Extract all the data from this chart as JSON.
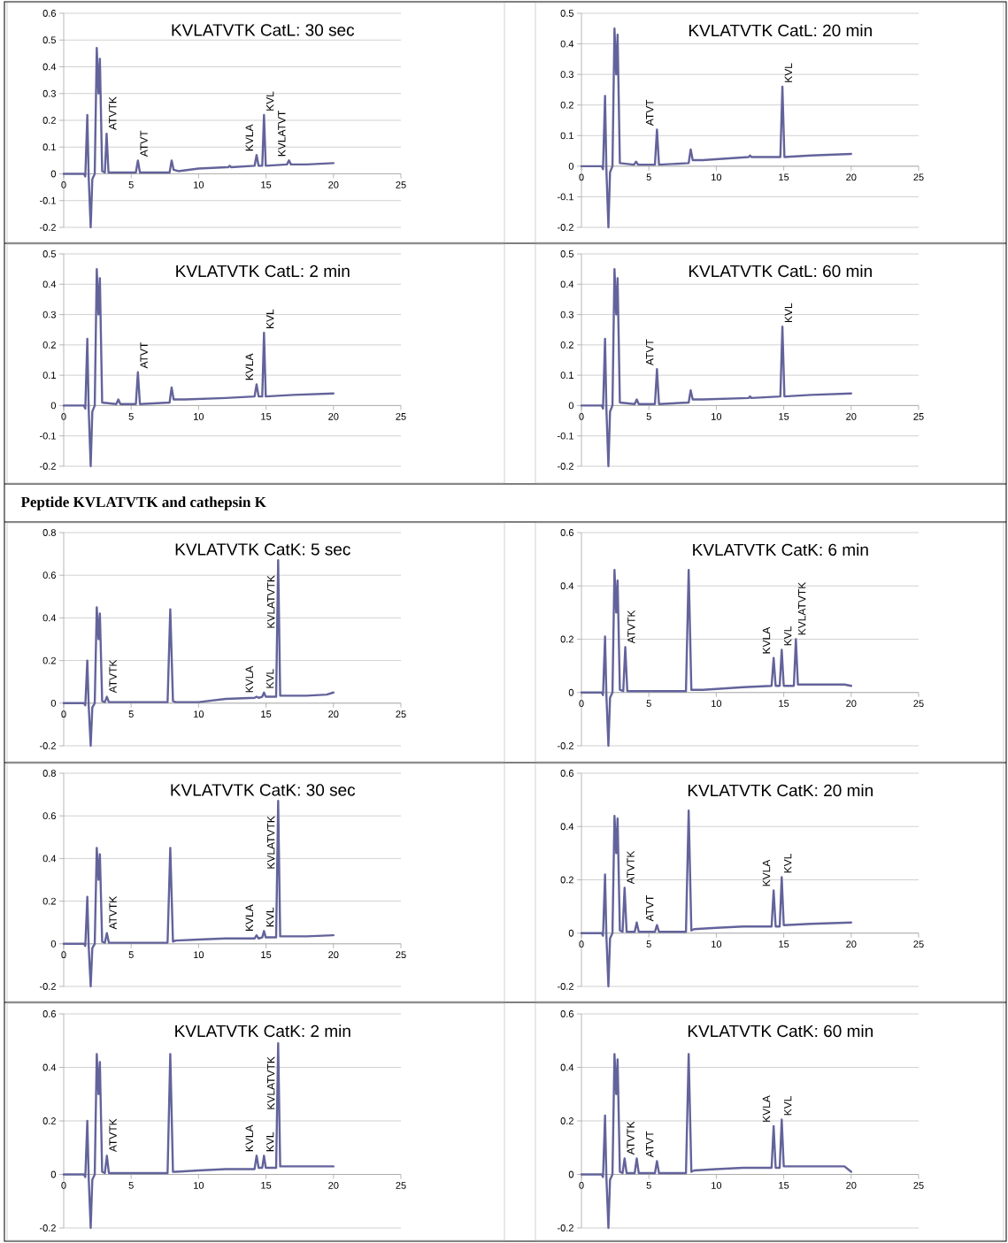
{
  "chart_data": [
    {
      "type": "line",
      "title": "KVLATVTK CatL: 30 sec",
      "color": "#63639b",
      "xlim": [
        0,
        25
      ],
      "ylim": [
        -0.2,
        0.6
      ],
      "xticks": [
        0,
        5,
        10,
        15,
        20,
        25
      ],
      "yticks": [
        -0.2,
        -0.1,
        0,
        0.1,
        0.2,
        0.3,
        0.4,
        0.5,
        0.6
      ],
      "grid": "y",
      "x": [
        0,
        1.5,
        1.6,
        1.75,
        1.85,
        2.0,
        2.12,
        2.3,
        2.45,
        2.58,
        2.68,
        2.85,
        3.05,
        3.18,
        3.32,
        5.35,
        5.5,
        5.65,
        7.85,
        8.0,
        8.15,
        8.5,
        10,
        12.2,
        12.3,
        12.4,
        14.15,
        14.3,
        14.45,
        14.72,
        14.85,
        14.98,
        16.55,
        16.7,
        16.85,
        18,
        20
      ],
      "values": [
        0,
        0,
        -0.01,
        0.22,
        -0.01,
        -0.2,
        -0.02,
        0,
        0.47,
        0.3,
        0.43,
        0.01,
        0.005,
        0.15,
        0.005,
        0.005,
        0.05,
        0.005,
        0.005,
        0.05,
        0.015,
        0.01,
        0.02,
        0.025,
        0.03,
        0.025,
        0.03,
        0.07,
        0.03,
        0.03,
        0.22,
        0.03,
        0.035,
        0.05,
        0.035,
        0.035,
        0.04
      ],
      "annotations": [
        {
          "text": "ATVTK",
          "x": 3.18,
          "y": 0.15
        },
        {
          "text": "ATVT",
          "x": 5.5,
          "y": 0.05
        },
        {
          "text": "KVLA",
          "x": 14.3,
          "y": 0.07
        },
        {
          "text": "KVL",
          "x": 14.85,
          "y": 0.22
        },
        {
          "text": "KVLATVT",
          "x": 16.7,
          "y": 0.05
        }
      ]
    },
    {
      "type": "line",
      "title": "KVLATVTK CatL: 20 min",
      "color": "#63639b",
      "xlim": [
        0,
        25
      ],
      "ylim": [
        -0.2,
        0.5
      ],
      "xticks": [
        0,
        5,
        10,
        15,
        20,
        25
      ],
      "yticks": [
        -0.2,
        -0.1,
        0,
        0.1,
        0.2,
        0.3,
        0.4,
        0.5
      ],
      "grid": "y",
      "x": [
        0,
        1.5,
        1.6,
        1.75,
        1.85,
        2.0,
        2.12,
        2.3,
        2.45,
        2.58,
        2.68,
        2.85,
        3.9,
        4.05,
        4.2,
        5.45,
        5.6,
        5.75,
        7.95,
        8.1,
        8.25,
        9,
        12.4,
        12.5,
        12.6,
        14.75,
        14.9,
        15.05,
        17,
        20
      ],
      "values": [
        0,
        0,
        -0.01,
        0.23,
        -0.01,
        -0.2,
        -0.02,
        0,
        0.45,
        0.3,
        0.43,
        0.01,
        0.005,
        0.015,
        0.005,
        0.005,
        0.12,
        0.005,
        0.01,
        0.055,
        0.02,
        0.02,
        0.03,
        0.035,
        0.03,
        0.03,
        0.26,
        0.03,
        0.035,
        0.04
      ],
      "annotations": [
        {
          "text": "ATVT",
          "x": 5.6,
          "y": 0.12
        },
        {
          "text": "KVL",
          "x": 14.9,
          "y": 0.26
        }
      ]
    },
    {
      "type": "line",
      "title": "KVLATVTK CatL: 2 min",
      "color": "#63639b",
      "xlim": [
        0,
        25
      ],
      "ylim": [
        -0.2,
        0.5
      ],
      "xticks": [
        0,
        5,
        10,
        15,
        20,
        25
      ],
      "yticks": [
        -0.2,
        -0.1,
        0,
        0.1,
        0.2,
        0.3,
        0.4,
        0.5
      ],
      "grid": "y",
      "x": [
        0,
        1.5,
        1.6,
        1.75,
        1.85,
        2.0,
        2.12,
        2.3,
        2.45,
        2.58,
        2.68,
        2.85,
        3.9,
        4.05,
        4.2,
        5.35,
        5.5,
        5.65,
        7.85,
        8.0,
        8.15,
        9,
        12,
        14.15,
        14.3,
        14.45,
        14.72,
        14.85,
        14.98,
        17,
        20
      ],
      "values": [
        0,
        0,
        -0.01,
        0.22,
        -0.01,
        -0.2,
        -0.02,
        0,
        0.45,
        0.3,
        0.42,
        0.01,
        0.005,
        0.02,
        0.005,
        0.005,
        0.11,
        0.005,
        0.01,
        0.06,
        0.02,
        0.02,
        0.025,
        0.03,
        0.07,
        0.03,
        0.03,
        0.24,
        0.03,
        0.035,
        0.04
      ],
      "annotations": [
        {
          "text": "ATVT",
          "x": 5.5,
          "y": 0.11
        },
        {
          "text": "KVLA",
          "x": 14.3,
          "y": 0.07
        },
        {
          "text": "KVL",
          "x": 14.85,
          "y": 0.24
        }
      ]
    },
    {
      "type": "line",
      "title": "KVLATVTK CatL: 60 min",
      "color": "#63639b",
      "xlim": [
        0,
        25
      ],
      "ylim": [
        -0.2,
        0.5
      ],
      "xticks": [
        0,
        5,
        10,
        15,
        20,
        25
      ],
      "yticks": [
        -0.2,
        -0.1,
        0,
        0.1,
        0.2,
        0.3,
        0.4,
        0.5
      ],
      "grid": "y",
      "x": [
        0,
        1.5,
        1.6,
        1.75,
        1.85,
        2.0,
        2.12,
        2.3,
        2.45,
        2.58,
        2.68,
        2.85,
        3.95,
        4.1,
        4.25,
        5.45,
        5.6,
        5.75,
        7.95,
        8.1,
        8.25,
        9,
        12.4,
        12.5,
        12.6,
        14.75,
        14.9,
        15.05,
        17,
        20
      ],
      "values": [
        0,
        0,
        -0.01,
        0.22,
        -0.01,
        -0.2,
        -0.02,
        0,
        0.45,
        0.3,
        0.42,
        0.01,
        0.005,
        0.02,
        0.005,
        0.005,
        0.12,
        0.005,
        0.01,
        0.05,
        0.02,
        0.02,
        0.025,
        0.03,
        0.025,
        0.03,
        0.26,
        0.03,
        0.035,
        0.04
      ],
      "annotations": [
        {
          "text": "ATVT",
          "x": 5.6,
          "y": 0.12
        },
        {
          "text": "KVL",
          "x": 14.9,
          "y": 0.26
        }
      ]
    },
    {
      "type": "line",
      "title": "KVLATVTK CatK: 5 sec",
      "color": "#63639b",
      "xlim": [
        0,
        25
      ],
      "ylim": [
        -0.2,
        0.8
      ],
      "xticks": [
        0,
        5,
        10,
        15,
        20,
        25
      ],
      "yticks": [
        -0.2,
        0,
        0.2,
        0.4,
        0.6,
        0.8
      ],
      "grid": "y",
      "x": [
        0,
        1.5,
        1.6,
        1.75,
        1.85,
        2.0,
        2.12,
        2.3,
        2.45,
        2.58,
        2.68,
        2.85,
        3.05,
        3.2,
        3.35,
        7.7,
        7.9,
        8.1,
        8.3,
        10,
        12,
        14.15,
        14.3,
        14.45,
        14.72,
        14.85,
        14.98,
        15.75,
        15.9,
        16.05,
        18,
        19.5,
        20
      ],
      "values": [
        0,
        0,
        -0.01,
        0.2,
        -0.01,
        -0.2,
        -0.02,
        0,
        0.45,
        0.3,
        0.42,
        0.01,
        0.005,
        0.03,
        0.005,
        0.005,
        0.44,
        0.01,
        0.005,
        0.005,
        0.02,
        0.025,
        0.03,
        0.025,
        0.03,
        0.05,
        0.03,
        0.03,
        0.67,
        0.035,
        0.035,
        0.04,
        0.05
      ],
      "annotations": [
        "Peptide KVLATVTK and cathepsin K",
        {
          "text": "ATVTK",
          "x": 3.2,
          "y": 0.03
        },
        {
          "text": "KVLA",
          "x": 14.3,
          "y": 0.03
        },
        {
          "text": "KVL",
          "x": 14.85,
          "y": 0.05
        },
        {
          "text": "KVLATVTK",
          "x": 15.9,
          "y": 0.67
        }
      ]
    },
    {
      "type": "line",
      "title": "KVLATVTK CatK: 6 min",
      "color": "#63639b",
      "xlim": [
        0,
        25
      ],
      "ylim": [
        -0.2,
        0.6
      ],
      "xticks": [
        0,
        5,
        10,
        15,
        20,
        25
      ],
      "yticks": [
        -0.2,
        0,
        0.2,
        0.4,
        0.6
      ],
      "grid": "y",
      "x": [
        0,
        1.5,
        1.6,
        1.75,
        1.85,
        2.0,
        2.12,
        2.3,
        2.45,
        2.58,
        2.68,
        2.85,
        3.1,
        3.25,
        3.4,
        7.75,
        7.95,
        8.15,
        8.35,
        9,
        12,
        14.1,
        14.25,
        14.4,
        14.7,
        14.85,
        15.0,
        15.75,
        15.9,
        16.05,
        17,
        19.5,
        20
      ],
      "values": [
        0,
        0,
        -0.01,
        0.21,
        -0.01,
        -0.2,
        -0.02,
        0,
        0.46,
        0.3,
        0.42,
        0.01,
        0.005,
        0.17,
        0.005,
        0.005,
        0.46,
        0.01,
        0.01,
        0.01,
        0.02,
        0.025,
        0.13,
        0.025,
        0.025,
        0.16,
        0.025,
        0.025,
        0.2,
        0.03,
        0.03,
        0.03,
        0.025
      ],
      "annotations": [
        {
          "text": "ATVTK",
          "x": 3.25,
          "y": 0.17
        },
        {
          "text": "KVLA",
          "x": 14.25,
          "y": 0.13
        },
        {
          "text": "KVL",
          "x": 14.85,
          "y": 0.16
        },
        {
          "text": "KVLATVTK",
          "x": 15.9,
          "y": 0.2
        }
      ]
    },
    {
      "type": "line",
      "title": "KVLATVTK CatK: 30 sec",
      "color": "#63639b",
      "xlim": [
        0,
        25
      ],
      "ylim": [
        -0.2,
        0.8
      ],
      "xticks": [
        0,
        5,
        10,
        15,
        20,
        25
      ],
      "yticks": [
        -0.2,
        0,
        0.2,
        0.4,
        0.6,
        0.8
      ],
      "grid": "y",
      "x": [
        0,
        1.5,
        1.6,
        1.75,
        1.85,
        2.0,
        2.12,
        2.3,
        2.45,
        2.58,
        2.68,
        2.85,
        3.05,
        3.2,
        3.35,
        7.7,
        7.9,
        8.1,
        8.3,
        10,
        12,
        14.15,
        14.3,
        14.45,
        14.72,
        14.85,
        14.98,
        15.75,
        15.9,
        16.05,
        18,
        20
      ],
      "values": [
        0,
        0,
        -0.01,
        0.22,
        -0.01,
        -0.2,
        -0.02,
        0,
        0.45,
        0.3,
        0.42,
        0.01,
        0.005,
        0.05,
        0.005,
        0.005,
        0.45,
        0.01,
        0.015,
        0.02,
        0.025,
        0.025,
        0.04,
        0.025,
        0.03,
        0.06,
        0.03,
        0.03,
        0.67,
        0.035,
        0.035,
        0.04
      ],
      "annotations": [
        {
          "text": "ATVTK",
          "x": 3.2,
          "y": 0.05
        },
        {
          "text": "KVLA",
          "x": 14.3,
          "y": 0.04
        },
        {
          "text": "KVL",
          "x": 14.85,
          "y": 0.06
        },
        {
          "text": "KVLATVTK",
          "x": 15.9,
          "y": 0.67
        }
      ]
    },
    {
      "type": "line",
      "title": "KVLATVTK CatK: 20 min",
      "color": "#63639b",
      "xlim": [
        0,
        25
      ],
      "ylim": [
        -0.2,
        0.6
      ],
      "xticks": [
        0,
        5,
        10,
        15,
        20,
        25
      ],
      "yticks": [
        -0.2,
        0,
        0.2,
        0.4,
        0.6
      ],
      "grid": "y",
      "x": [
        0,
        1.5,
        1.6,
        1.75,
        1.85,
        2.0,
        2.12,
        2.3,
        2.45,
        2.58,
        2.68,
        2.85,
        3.05,
        3.2,
        3.35,
        3.95,
        4.1,
        4.25,
        5.45,
        5.6,
        5.75,
        7.75,
        7.95,
        8.15,
        8.35,
        10,
        12,
        14.1,
        14.25,
        14.4,
        14.7,
        14.85,
        15.0,
        17,
        20
      ],
      "values": [
        0,
        0,
        -0.01,
        0.22,
        -0.01,
        -0.2,
        -0.02,
        0,
        0.44,
        0.3,
        0.43,
        0.01,
        0.005,
        0.17,
        0.005,
        0.005,
        0.04,
        0.005,
        0.005,
        0.03,
        0.005,
        0.005,
        0.46,
        0.01,
        0.015,
        0.02,
        0.025,
        0.025,
        0.16,
        0.025,
        0.025,
        0.21,
        0.03,
        0.035,
        0.04
      ],
      "annotations": [
        {
          "text": "ATVTK",
          "x": 3.2,
          "y": 0.17
        },
        {
          "text": "ATVT",
          "x": 5.6,
          "y": 0.03
        },
        {
          "text": "KVLA",
          "x": 14.25,
          "y": 0.16
        },
        {
          "text": "KVL",
          "x": 14.85,
          "y": 0.21
        }
      ]
    },
    {
      "type": "line",
      "title": "KVLATVTK CatK: 2 min",
      "color": "#63639b",
      "xlim": [
        0,
        25
      ],
      "ylim": [
        -0.2,
        0.6
      ],
      "xticks": [
        0,
        5,
        10,
        15,
        20,
        25
      ],
      "yticks": [
        -0.2,
        0,
        0.2,
        0.4,
        0.6
      ],
      "grid": "y",
      "x": [
        0,
        1.5,
        1.6,
        1.75,
        1.85,
        2.0,
        2.12,
        2.3,
        2.45,
        2.58,
        2.68,
        2.85,
        3.05,
        3.2,
        3.35,
        7.7,
        7.9,
        8.1,
        8.3,
        10,
        12,
        14.15,
        14.3,
        14.45,
        14.72,
        14.85,
        14.98,
        15.75,
        15.9,
        16.05,
        18,
        20
      ],
      "values": [
        0,
        0,
        -0.01,
        0.2,
        -0.01,
        -0.2,
        -0.02,
        0,
        0.45,
        0.3,
        0.42,
        0.01,
        0.005,
        0.07,
        0.005,
        0.005,
        0.45,
        0.01,
        0.01,
        0.015,
        0.02,
        0.02,
        0.07,
        0.025,
        0.025,
        0.07,
        0.025,
        0.025,
        0.49,
        0.03,
        0.03,
        0.03
      ],
      "annotations": [
        {
          "text": "ATVTK",
          "x": 3.2,
          "y": 0.07
        },
        {
          "text": "KVLA",
          "x": 14.3,
          "y": 0.07
        },
        {
          "text": "KVL",
          "x": 14.85,
          "y": 0.07
        },
        {
          "text": "KVLATVTK",
          "x": 15.9,
          "y": 0.49
        }
      ]
    },
    {
      "type": "line",
      "title": "KVLATVTK CatK: 60 min",
      "color": "#63639b",
      "xlim": [
        0,
        25
      ],
      "ylim": [
        -0.2,
        0.6
      ],
      "xticks": [
        0,
        5,
        10,
        15,
        20,
        25
      ],
      "yticks": [
        -0.2,
        0,
        0.2,
        0.4,
        0.6
      ],
      "grid": "y",
      "x": [
        0,
        1.5,
        1.6,
        1.75,
        1.85,
        2.0,
        2.12,
        2.3,
        2.45,
        2.58,
        2.68,
        2.85,
        3.05,
        3.2,
        3.35,
        3.95,
        4.1,
        4.25,
        5.45,
        5.6,
        5.75,
        7.75,
        7.95,
        8.15,
        8.35,
        10,
        12,
        14.1,
        14.25,
        14.4,
        14.7,
        14.85,
        15.0,
        17,
        19.5,
        20
      ],
      "values": [
        0,
        0,
        -0.01,
        0.22,
        -0.01,
        -0.2,
        -0.02,
        0,
        0.45,
        0.3,
        0.43,
        0.01,
        0.005,
        0.06,
        0.005,
        0.005,
        0.06,
        0.005,
        0.005,
        0.05,
        0.005,
        0.005,
        0.45,
        0.01,
        0.015,
        0.02,
        0.025,
        0.025,
        0.18,
        0.025,
        0.025,
        0.205,
        0.03,
        0.03,
        0.03,
        0.01
      ],
      "annotations": [
        {
          "text": "ATVTK",
          "x": 3.2,
          "y": 0.06
        },
        {
          "text": "ATVT",
          "x": 5.6,
          "y": 0.05
        },
        {
          "text": "KVLA",
          "x": 14.25,
          "y": 0.18
        },
        {
          "text": "KVL",
          "x": 14.85,
          "y": 0.205
        }
      ]
    }
  ]
}
